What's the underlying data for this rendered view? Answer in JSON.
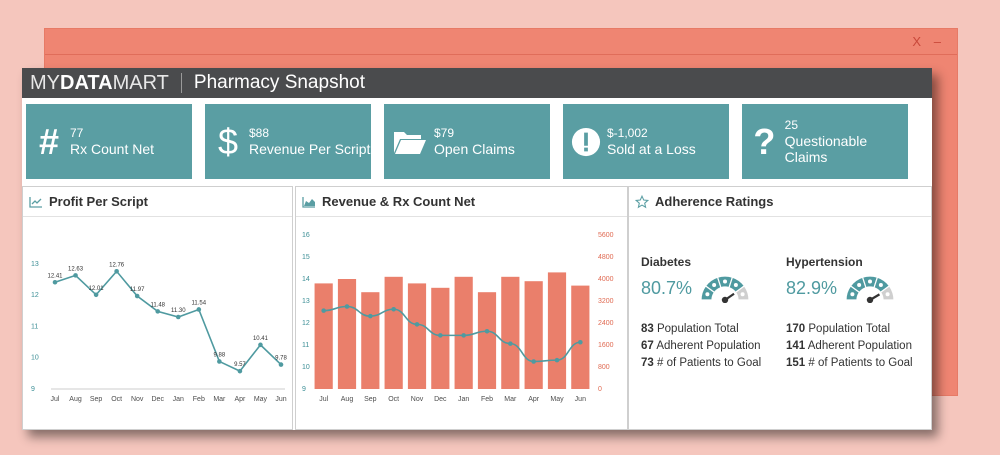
{
  "background_window": {
    "close_label": "X",
    "minimize_label": "–"
  },
  "app": {
    "logo_thin": "MY",
    "logo_bold": "DATA",
    "logo_thin2": "MART",
    "title": "Pharmacy Snapshot"
  },
  "kpis": [
    {
      "icon": "#",
      "value": "77",
      "label": "Rx Count Net"
    },
    {
      "icon": "$",
      "value": "$88",
      "label": "Revenue Per Script"
    },
    {
      "icon": "folder",
      "value": "$79",
      "label": "Open Claims"
    },
    {
      "icon": "!",
      "value": "$-1,002",
      "label": "Sold at a Loss"
    },
    {
      "icon": "?",
      "value": "25",
      "label": "Questionable Claims"
    }
  ],
  "panels": {
    "profit": {
      "title": "Profit Per Script"
    },
    "revenue": {
      "title": "Revenue & Rx Count Net"
    },
    "adherence": {
      "title": "Adherence Ratings"
    }
  },
  "colors": {
    "teal": "#5a9ea3",
    "bar": "#ea7f6b",
    "dark": "#4a4b4d"
  },
  "chart_data": [
    {
      "type": "line",
      "title": "Profit Per Script",
      "categories": [
        "Jul",
        "Aug",
        "Sep",
        "Oct",
        "Nov",
        "Dec",
        "Jan",
        "Feb",
        "Mar",
        "Apr",
        "May",
        "Jun"
      ],
      "values": [
        12.41,
        12.63,
        12.01,
        12.76,
        11.97,
        11.48,
        11.3,
        11.54,
        9.88,
        9.57,
        10.41,
        9.78
      ],
      "data_labels": [
        "12.41",
        "12.63",
        "12.01",
        "12.76",
        "11.97",
        "11.48",
        "11.30",
        "11.54",
        "9.88",
        "9.57",
        "10.41",
        "9.78"
      ],
      "yticks": [
        "13",
        "12",
        "11",
        "10",
        "9"
      ],
      "ylim": [
        9,
        13.6
      ]
    },
    {
      "type": "bar",
      "title": "Revenue & Rx Count Net",
      "categories": [
        "Jul",
        "Aug",
        "Sep",
        "Oct",
        "Nov",
        "Dec",
        "Jan",
        "Feb",
        "Mar",
        "Apr",
        "May",
        "Jun"
      ],
      "bars_left_axis": [
        13.8,
        14.0,
        13.4,
        14.1,
        13.8,
        13.6,
        14.1,
        13.4,
        14.1,
        13.9,
        14.3,
        13.7
      ],
      "line_right_axis": [
        2850,
        3000,
        2650,
        2900,
        2350,
        1950,
        1950,
        2100,
        1650,
        1000,
        1050,
        1700
      ],
      "yticks_left": [
        "16",
        "15",
        "14",
        "13",
        "12",
        "11",
        "10",
        "9"
      ],
      "yticks_right": [
        "5600",
        "4800",
        "4000",
        "3200",
        "2400",
        "1600",
        "800",
        "0"
      ],
      "ylim_left": [
        9,
        16
      ],
      "ylim_right": [
        0,
        5600
      ]
    }
  ],
  "adherence": [
    {
      "name": "Diabetes",
      "rate": "80.7%",
      "rate_value": 80.7,
      "stats": [
        {
          "num": "83",
          "label": " Population Total"
        },
        {
          "num": "67",
          "label": " Adherent Population"
        },
        {
          "num": "73",
          "label": " # of Patients to Goal"
        }
      ]
    },
    {
      "name": "Hypertension",
      "rate": "82.9%",
      "rate_value": 82.9,
      "stats": [
        {
          "num": "170",
          "label": " Population Total"
        },
        {
          "num": "141",
          "label": " Adherent Population"
        },
        {
          "num": "151",
          "label": " # of Patients to Goal"
        }
      ]
    }
  ]
}
